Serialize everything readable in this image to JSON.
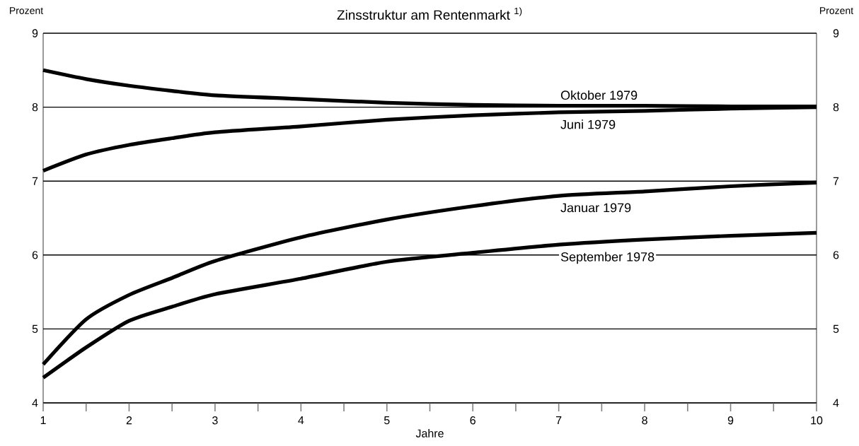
{
  "chart_data": {
    "type": "line",
    "title": "Zinsstruktur am Rentenmarkt $^{1)}$",
    "xlabel": "Jahre",
    "ylabel": "Prozent",
    "y2label": "Prozent",
    "xlim": [
      1,
      10
    ],
    "xticks": [
      1,
      {
        "value": 1.5,
        "label": null
      },
      2,
      {
        "value": 2.5,
        "label": null
      },
      3,
      {
        "value": 3.5,
        "label": null
      },
      4,
      {
        "value": 4.5,
        "label": null
      },
      5,
      {
        "value": 5.5,
        "label": null
      },
      6,
      {
        "value": 6.5,
        "label": null
      },
      7,
      {
        "value": 7.5,
        "label": null
      },
      8,
      {
        "value": 8.5,
        "label": null
      },
      9,
      {
        "value": 9.5,
        "label": null
      },
      10
    ],
    "ylim": [
      4,
      9
    ],
    "yticks": [
      4,
      5,
      6,
      7,
      8,
      9
    ],
    "y2lim": [
      4,
      9
    ],
    "y2ticks": [
      4,
      5,
      6,
      7,
      8,
      9
    ],
    "grid": "y",
    "legend": false,
    "marker": "none",
    "line_style": "solid",
    "x": [
      1,
      1.5,
      2,
      2.5,
      3,
      4,
      5,
      6,
      7,
      8,
      9,
      10
    ],
    "series": [
      {
        "name": "Oktober 1979",
        "color": "#000000",
        "values": [
          8.5,
          8.38,
          8.29,
          8.22,
          8.16,
          8.11,
          8.06,
          8.03,
          8.02,
          8.02,
          8.01,
          8.01
        ]
      },
      {
        "name": "Juni 1979",
        "color": "#000000",
        "values": [
          7.14,
          7.36,
          7.49,
          7.58,
          7.66,
          7.74,
          7.83,
          7.89,
          7.93,
          7.95,
          7.98,
          8.0
        ]
      },
      {
        "name": "Januar 1979",
        "color": "#000000",
        "values": [
          4.52,
          5.13,
          5.46,
          5.69,
          5.92,
          6.24,
          6.48,
          6.66,
          6.8,
          6.86,
          6.93,
          6.98
        ]
      },
      {
        "name": "September 1978",
        "color": "#000000",
        "values": [
          4.34,
          4.75,
          5.11,
          5.3,
          5.47,
          5.68,
          5.91,
          6.03,
          6.14,
          6.21,
          6.26,
          6.3
        ]
      }
    ]
  }
}
